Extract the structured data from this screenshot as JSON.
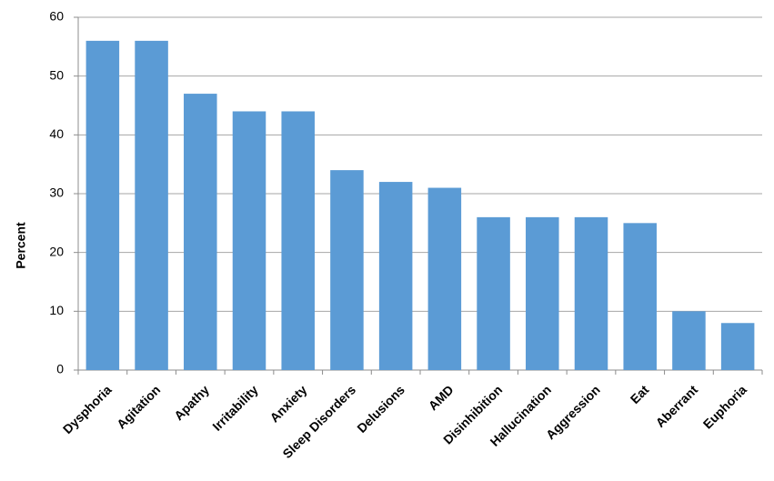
{
  "chart_data": {
    "type": "bar",
    "y_label": "Percent",
    "categories": [
      "Dysphoria",
      "Agitation",
      "Apathy",
      "Irritability",
      "Anxiety",
      "Sleep Disorders",
      "Delusions",
      "AMD",
      "Disinhibition",
      "Hallucination",
      "Aggression",
      "Eat",
      "Aberrant",
      "Euphoria"
    ],
    "values": [
      56,
      56,
      47,
      44,
      44,
      34,
      32,
      31,
      26,
      26,
      26,
      25,
      10,
      8
    ],
    "color": "#5b9bd5",
    "ylim": [
      0,
      60
    ],
    "yticks": [
      0,
      10,
      20,
      30,
      40,
      50,
      60
    ],
    "grid": true
  }
}
